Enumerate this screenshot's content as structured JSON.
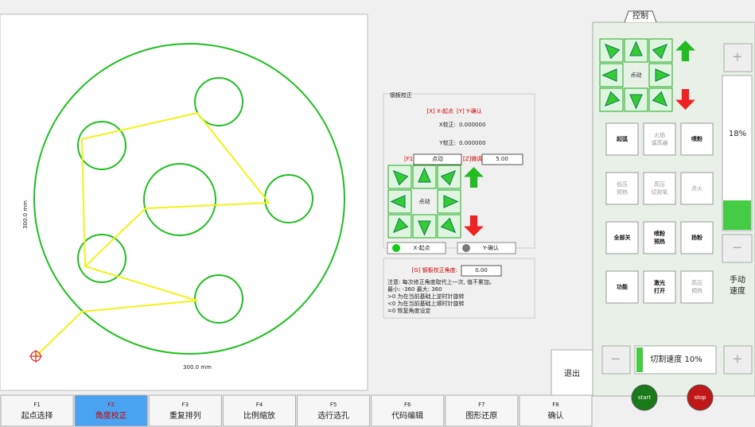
{
  "tab": "控制",
  "canvas": {
    "width_label": "300.0 mm",
    "height_label": "300.0 mm"
  },
  "panel": {
    "title": "钢板校正",
    "hint_x": "[X] X-起点",
    "hint_y": "[Y] Y-确认",
    "x_label": "X校正:",
    "x_value": "0.000000",
    "y_label": "Y校正:",
    "y_value": "0.000000",
    "f1_key": "[F1]",
    "f1_value": "点动",
    "z_key": "[Z]微调",
    "z_value": "5.00",
    "jog": "点动",
    "btn_x": "X-起点",
    "btn_y": "Y-确认",
    "angle_label": "[G] 钢板校正角度:",
    "angle_value": "0.00",
    "notes": [
      "注意: 每次修正角度取代上一次, 值不累加。",
      "最小: -360 最大: 360",
      ">0 为在当前基础上逆时针旋转",
      "<0 为在当前基础上顺时针旋转",
      "=0 恢复角度设定"
    ],
    "exit": "退出"
  },
  "control": {
    "jog": "点动",
    "buttons": [
      {
        "lines": [
          "起弧"
        ],
        "enabled": true
      },
      {
        "lines": [
          "火焰",
          "调高器"
        ],
        "enabled": false
      },
      {
        "lines": [
          "喷粉"
        ],
        "enabled": true
      },
      {
        "lines": [
          "低压",
          "预热"
        ],
        "enabled": false
      },
      {
        "lines": [
          "高压",
          "切割氧"
        ],
        "enabled": false
      },
      {
        "lines": [
          "点火"
        ],
        "enabled": false
      },
      {
        "lines": [
          "全部关"
        ],
        "enabled": true
      },
      {
        "lines": [
          "喷粉",
          "预热"
        ],
        "enabled": true
      },
      {
        "lines": [
          "扬粉"
        ],
        "enabled": true
      },
      {
        "lines": [
          "功能"
        ],
        "enabled": true
      },
      {
        "lines": [
          "激光",
          "打开"
        ],
        "enabled": true
      },
      {
        "lines": [
          "高压",
          "预热"
        ],
        "enabled": false
      }
    ],
    "speed_percent": "18%",
    "manual_speed": [
      "手动",
      "速度"
    ],
    "cut_speed": "切割速度 10%",
    "start": "start",
    "stop": "stop"
  },
  "function_keys": [
    {
      "key": "F1",
      "label": "起点选择",
      "active": false
    },
    {
      "key": "F2",
      "label": "角度校正",
      "active": true
    },
    {
      "key": "F3",
      "label": "重复排列",
      "active": false
    },
    {
      "key": "F4",
      "label": "比例缩放",
      "active": false
    },
    {
      "key": "F5",
      "label": "选行选孔",
      "active": false
    },
    {
      "key": "F6",
      "label": "代码编辑",
      "active": false
    },
    {
      "key": "F7",
      "label": "图形还原",
      "active": false
    },
    {
      "key": "F8",
      "label": "确认",
      "active": false
    }
  ]
}
